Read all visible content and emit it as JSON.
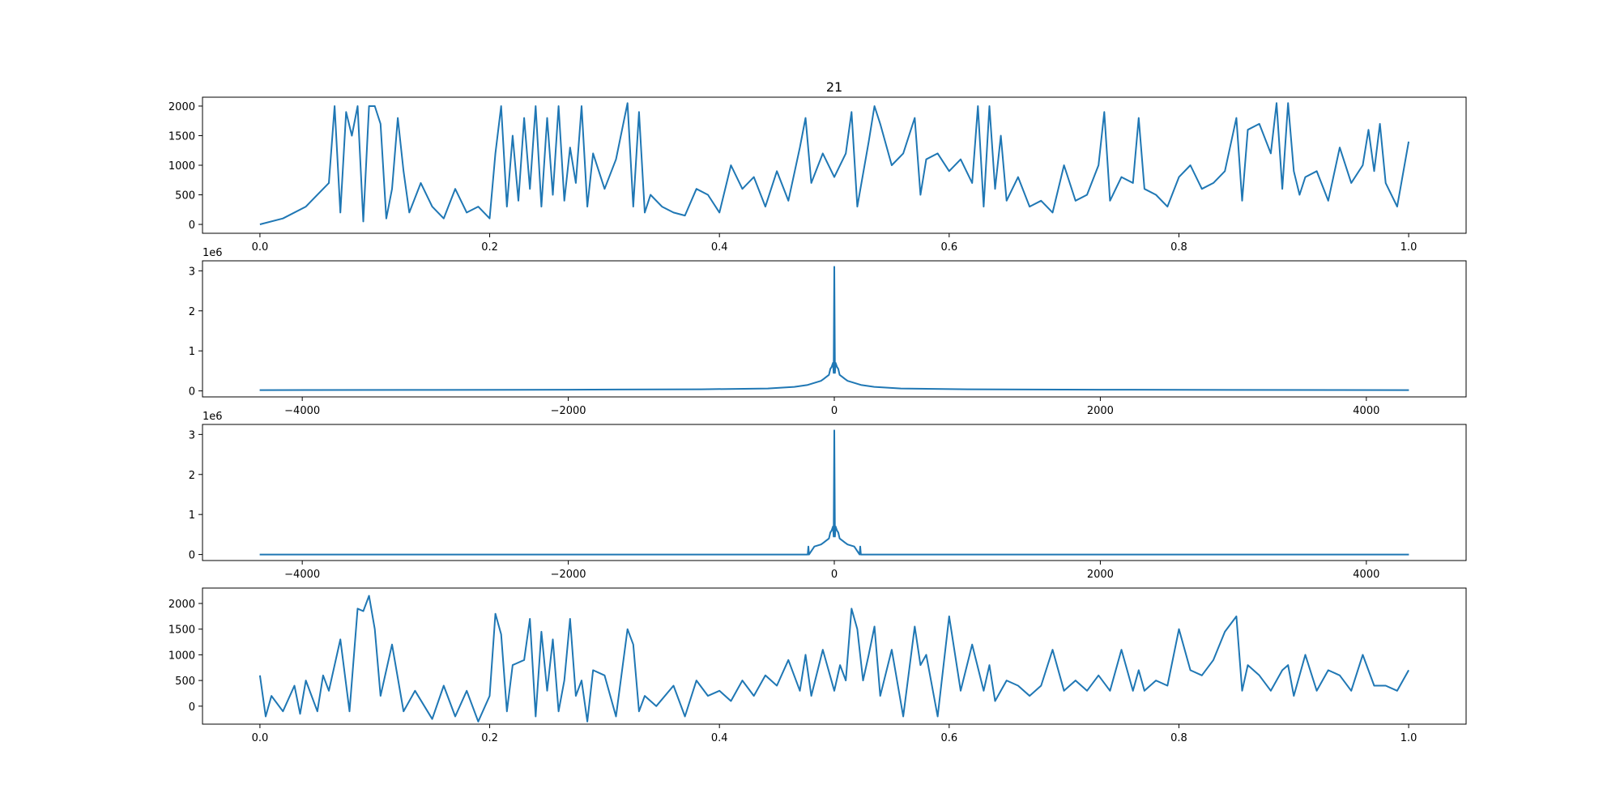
{
  "figure_title": "21",
  "line_color": "#1f77b4",
  "chart_data": [
    {
      "type": "line",
      "title": "21",
      "xlim": [
        -0.05,
        1.05
      ],
      "ylim": [
        -150,
        2150
      ],
      "xticks": [
        0.0,
        0.2,
        0.4,
        0.6,
        0.8,
        1.0
      ],
      "xtick_labels": [
        "0.0",
        "0.2",
        "0.4",
        "0.6",
        "0.8",
        "1.0"
      ],
      "yticks": [
        0,
        500,
        1000,
        1500,
        2000
      ],
      "ytick_labels": [
        "0",
        "500",
        "1000",
        "1500",
        "2000"
      ],
      "offset_text": "",
      "x": [
        0.0,
        0.02,
        0.04,
        0.06,
        0.065,
        0.07,
        0.075,
        0.08,
        0.085,
        0.09,
        0.095,
        0.1,
        0.105,
        0.11,
        0.115,
        0.12,
        0.125,
        0.13,
        0.14,
        0.15,
        0.16,
        0.17,
        0.18,
        0.19,
        0.2,
        0.205,
        0.21,
        0.215,
        0.22,
        0.225,
        0.23,
        0.235,
        0.24,
        0.245,
        0.25,
        0.255,
        0.26,
        0.265,
        0.27,
        0.275,
        0.28,
        0.285,
        0.29,
        0.3,
        0.31,
        0.32,
        0.325,
        0.33,
        0.335,
        0.34,
        0.35,
        0.36,
        0.37,
        0.38,
        0.39,
        0.4,
        0.41,
        0.42,
        0.43,
        0.44,
        0.45,
        0.46,
        0.47,
        0.475,
        0.48,
        0.49,
        0.5,
        0.51,
        0.515,
        0.52,
        0.53,
        0.535,
        0.54,
        0.55,
        0.56,
        0.57,
        0.575,
        0.58,
        0.59,
        0.6,
        0.61,
        0.62,
        0.625,
        0.63,
        0.635,
        0.64,
        0.645,
        0.65,
        0.66,
        0.67,
        0.68,
        0.69,
        0.7,
        0.71,
        0.72,
        0.73,
        0.735,
        0.74,
        0.75,
        0.76,
        0.765,
        0.77,
        0.78,
        0.79,
        0.8,
        0.81,
        0.82,
        0.83,
        0.84,
        0.85,
        0.855,
        0.86,
        0.87,
        0.88,
        0.885,
        0.89,
        0.895,
        0.9,
        0.905,
        0.91,
        0.92,
        0.93,
        0.94,
        0.95,
        0.96,
        0.965,
        0.97,
        0.975,
        0.98,
        0.99,
        1.0
      ],
      "y": [
        0,
        100,
        300,
        700,
        2000,
        200,
        1900,
        1500,
        2000,
        50,
        2000,
        2000,
        1700,
        100,
        600,
        1800,
        900,
        200,
        700,
        300,
        100,
        600,
        200,
        300,
        100,
        1200,
        2000,
        300,
        1500,
        400,
        1800,
        600,
        2000,
        300,
        1800,
        500,
        2000,
        400,
        1300,
        700,
        2000,
        300,
        1200,
        600,
        1100,
        2050,
        300,
        1900,
        200,
        500,
        300,
        200,
        150,
        600,
        500,
        200,
        1000,
        600,
        800,
        300,
        900,
        400,
        1300,
        1800,
        700,
        1200,
        800,
        1200,
        1900,
        300,
        1400,
        2000,
        1700,
        1000,
        1200,
        1800,
        500,
        1100,
        1200,
        900,
        1100,
        700,
        2000,
        300,
        2000,
        600,
        1500,
        400,
        800,
        300,
        400,
        200,
        1000,
        400,
        500,
        1000,
        1900,
        400,
        800,
        700,
        1800,
        600,
        500,
        300,
        800,
        1000,
        600,
        700,
        900,
        1800,
        400,
        1600,
        1700,
        1200,
        2050,
        600,
        2050,
        900,
        500,
        800,
        900,
        400,
        1300,
        700,
        1000,
        1600,
        900,
        1700,
        700,
        300,
        1400
      ]
    },
    {
      "type": "line",
      "title": "",
      "xlim": [
        -4750,
        4750
      ],
      "ylim": [
        -150000,
        3250000
      ],
      "xticks": [
        -4000,
        -2000,
        0,
        2000,
        4000
      ],
      "xtick_labels": [
        "−4000",
        "−2000",
        "0",
        "2000",
        "4000"
      ],
      "yticks": [
        0,
        1000000,
        2000000,
        3000000
      ],
      "ytick_labels": [
        "0",
        "1",
        "2",
        "3"
      ],
      "offset_text": "1e6",
      "x": [
        -4320,
        -3000,
        -2000,
        -1000,
        -500,
        -400,
        -300,
        -200,
        -150,
        -100,
        -80,
        -60,
        -40,
        -30,
        -20,
        -10,
        -5,
        0,
        5,
        10,
        20,
        30,
        40,
        60,
        80,
        100,
        150,
        200,
        300,
        400,
        500,
        1000,
        2000,
        3000,
        4320
      ],
      "y": [
        20000,
        25000,
        30000,
        40000,
        60000,
        80000,
        100000,
        150000,
        200000,
        250000,
        300000,
        350000,
        400000,
        550000,
        600000,
        700000,
        450000,
        3100000,
        450000,
        700000,
        600000,
        550000,
        400000,
        350000,
        300000,
        250000,
        200000,
        150000,
        100000,
        80000,
        60000,
        40000,
        30000,
        25000,
        20000
      ]
    },
    {
      "type": "line",
      "title": "",
      "xlim": [
        -4750,
        4750
      ],
      "ylim": [
        -150000,
        3250000
      ],
      "xticks": [
        -4000,
        -2000,
        0,
        2000,
        4000
      ],
      "xtick_labels": [
        "−4000",
        "−2000",
        "0",
        "2000",
        "4000"
      ],
      "yticks": [
        0,
        1000000,
        2000000,
        3000000
      ],
      "ytick_labels": [
        "0",
        "1",
        "2",
        "3"
      ],
      "offset_text": "1e6",
      "x": [
        -4320,
        -200,
        -195,
        -190,
        -150,
        -100,
        -80,
        -60,
        -40,
        -30,
        -20,
        -10,
        -5,
        0,
        5,
        10,
        20,
        30,
        40,
        60,
        80,
        100,
        150,
        190,
        195,
        200,
        4320
      ],
      "y": [
        0,
        0,
        200000,
        0,
        200000,
        250000,
        300000,
        350000,
        400000,
        550000,
        600000,
        700000,
        450000,
        3100000,
        450000,
        700000,
        600000,
        550000,
        400000,
        350000,
        300000,
        250000,
        200000,
        0,
        200000,
        0,
        0
      ]
    },
    {
      "type": "line",
      "title": "",
      "xlim": [
        -0.05,
        1.05
      ],
      "ylim": [
        -350,
        2300
      ],
      "xticks": [
        0.0,
        0.2,
        0.4,
        0.6,
        0.8,
        1.0
      ],
      "xtick_labels": [
        "0.0",
        "0.2",
        "0.4",
        "0.6",
        "0.8",
        "1.0"
      ],
      "yticks": [
        0,
        500,
        1000,
        1500,
        2000
      ],
      "ytick_labels": [
        "0",
        "500",
        "1000",
        "1500",
        "2000"
      ],
      "offset_text": "",
      "x": [
        0.0,
        0.005,
        0.01,
        0.02,
        0.03,
        0.035,
        0.04,
        0.05,
        0.055,
        0.06,
        0.07,
        0.078,
        0.085,
        0.09,
        0.095,
        0.1,
        0.105,
        0.115,
        0.125,
        0.135,
        0.15,
        0.16,
        0.17,
        0.18,
        0.19,
        0.2,
        0.205,
        0.21,
        0.215,
        0.22,
        0.23,
        0.235,
        0.24,
        0.245,
        0.25,
        0.255,
        0.26,
        0.265,
        0.27,
        0.275,
        0.28,
        0.285,
        0.29,
        0.3,
        0.31,
        0.32,
        0.325,
        0.33,
        0.335,
        0.345,
        0.36,
        0.37,
        0.38,
        0.39,
        0.4,
        0.41,
        0.42,
        0.43,
        0.44,
        0.45,
        0.46,
        0.47,
        0.475,
        0.48,
        0.49,
        0.5,
        0.505,
        0.51,
        0.515,
        0.52,
        0.525,
        0.53,
        0.535,
        0.54,
        0.55,
        0.56,
        0.57,
        0.575,
        0.58,
        0.59,
        0.6,
        0.61,
        0.62,
        0.63,
        0.635,
        0.64,
        0.65,
        0.66,
        0.67,
        0.68,
        0.69,
        0.7,
        0.71,
        0.72,
        0.73,
        0.74,
        0.75,
        0.76,
        0.765,
        0.77,
        0.78,
        0.79,
        0.8,
        0.81,
        0.82,
        0.83,
        0.84,
        0.85,
        0.855,
        0.86,
        0.87,
        0.88,
        0.89,
        0.895,
        0.9,
        0.91,
        0.92,
        0.93,
        0.94,
        0.95,
        0.96,
        0.97,
        0.98,
        0.99,
        1.0
      ],
      "y": [
        600,
        -200,
        200,
        -100,
        400,
        -150,
        500,
        -100,
        600,
        300,
        1300,
        -100,
        1900,
        1850,
        2150,
        1500,
        200,
        1200,
        -100,
        300,
        -250,
        400,
        -200,
        300,
        -300,
        200,
        1800,
        1400,
        -100,
        800,
        900,
        1700,
        -200,
        1450,
        300,
        1300,
        -100,
        500,
        1700,
        200,
        500,
        -300,
        700,
        600,
        -200,
        1500,
        1200,
        -100,
        200,
        0,
        400,
        -200,
        500,
        200,
        300,
        100,
        500,
        200,
        600,
        400,
        900,
        300,
        1000,
        200,
        1100,
        300,
        800,
        500,
        1900,
        1500,
        500,
        1000,
        1550,
        200,
        1100,
        -200,
        1550,
        800,
        1000,
        -200,
        1750,
        300,
        1200,
        300,
        800,
        100,
        500,
        400,
        200,
        400,
        1100,
        300,
        500,
        300,
        600,
        300,
        1100,
        300,
        700,
        300,
        500,
        400,
        1500,
        700,
        600,
        900,
        1450,
        1750,
        300,
        800,
        600,
        300,
        700,
        800,
        200,
        1000,
        300,
        700,
        600,
        300,
        1000,
        400,
        400,
        300,
        700
      ]
    }
  ]
}
